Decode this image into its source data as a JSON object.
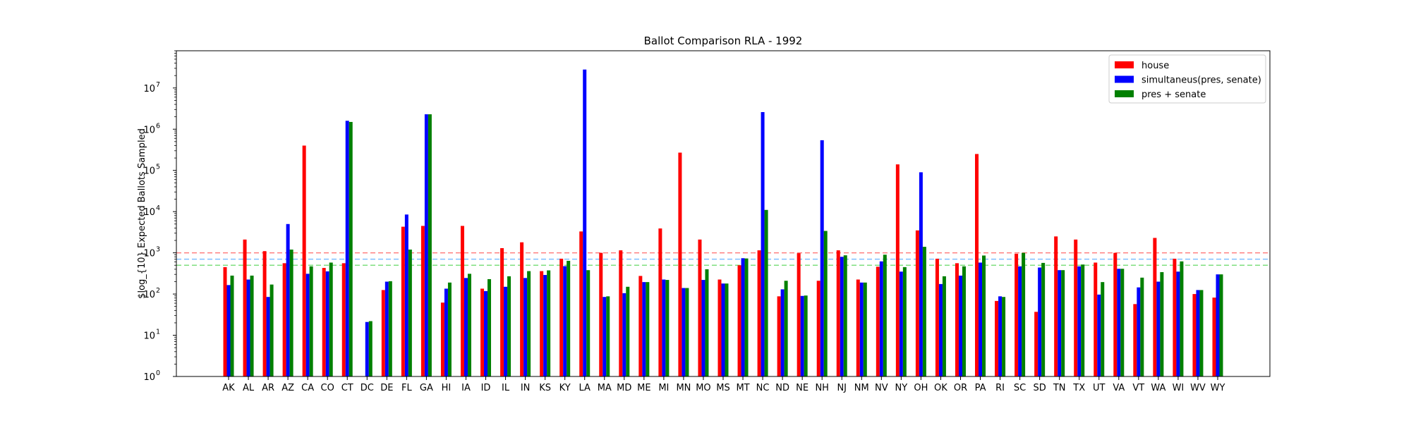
{
  "chart_data": {
    "type": "bar",
    "title": "Ballot Comparison RLA - 1992",
    "xlabel": "",
    "ylabel": "$log_{10} Expected Ballots Sampled",
    "yscale": "log",
    "ylim": [
      1,
      80000000
    ],
    "ytick_base": "10",
    "ytick_exponents": [
      "0",
      "1",
      "2",
      "3",
      "4",
      "5",
      "6",
      "7"
    ],
    "grid": false,
    "legend_position": "upper right",
    "categories": [
      "AK",
      "AL",
      "AR",
      "AZ",
      "CA",
      "CO",
      "CT",
      "DC",
      "DE",
      "FL",
      "GA",
      "HI",
      "IA",
      "ID",
      "IL",
      "IN",
      "KS",
      "KY",
      "LA",
      "MA",
      "MD",
      "ME",
      "MI",
      "MN",
      "MO",
      "MS",
      "MT",
      "NC",
      "ND",
      "NE",
      "NH",
      "NJ",
      "NM",
      "NV",
      "NY",
      "OH",
      "OK",
      "OR",
      "PA",
      "RI",
      "SC",
      "SD",
      "TN",
      "TX",
      "UT",
      "VA",
      "VT",
      "WA",
      "WI",
      "WV",
      "WY"
    ],
    "series": [
      {
        "name": "house",
        "color": "#ff0000",
        "values": [
          450,
          2100,
          1100,
          560,
          400000,
          430,
          560,
          null,
          125,
          4300,
          4500,
          62,
          4500,
          135,
          1300,
          1800,
          360,
          720,
          3300,
          1000,
          1150,
          275,
          3900,
          270000,
          2100,
          225,
          500,
          1150,
          88,
          980,
          210,
          1150,
          225,
          460,
          140000,
          3500,
          720,
          560,
          250000,
          68,
          950,
          37,
          2500,
          2100,
          580,
          1000,
          57,
          2300,
          720,
          100,
          82
        ]
      },
      {
        "name": "simultaneus(pres, senate)",
        "color": "#0000ff",
        "values": [
          165,
          225,
          85,
          5000,
          310,
          355,
          1600000,
          21,
          200,
          8500,
          2300000,
          135,
          245,
          118,
          150,
          245,
          290,
          475,
          28000000,
          85,
          105,
          195,
          225,
          140,
          220,
          180,
          740,
          2600000,
          130,
          90,
          540000,
          800,
          190,
          620,
          350,
          90000,
          175,
          280,
          580,
          88,
          470,
          440,
          380,
          470,
          97,
          410,
          145,
          200,
          350,
          125,
          300
        ]
      },
      {
        "name": "pres + senate",
        "color": "#008000",
        "values": [
          280,
          280,
          170,
          1200,
          470,
          580,
          1500000,
          22,
          205,
          1200,
          2300000,
          190,
          310,
          230,
          270,
          360,
          375,
          640,
          380,
          88,
          150,
          195,
          220,
          140,
          400,
          180,
          730,
          11000,
          210,
          92,
          3400,
          870,
          190,
          900,
          450,
          1400,
          270,
          470,
          860,
          85,
          1000,
          570,
          380,
          520,
          195,
          410,
          250,
          340,
          620,
          125,
          300
        ]
      }
    ],
    "reference_lines": [
      {
        "y": 1000,
        "color": "#ff7f7f"
      },
      {
        "y": 700,
        "color": "#7fbfff"
      },
      {
        "y": 500,
        "color": "#7fdf7f"
      }
    ]
  }
}
